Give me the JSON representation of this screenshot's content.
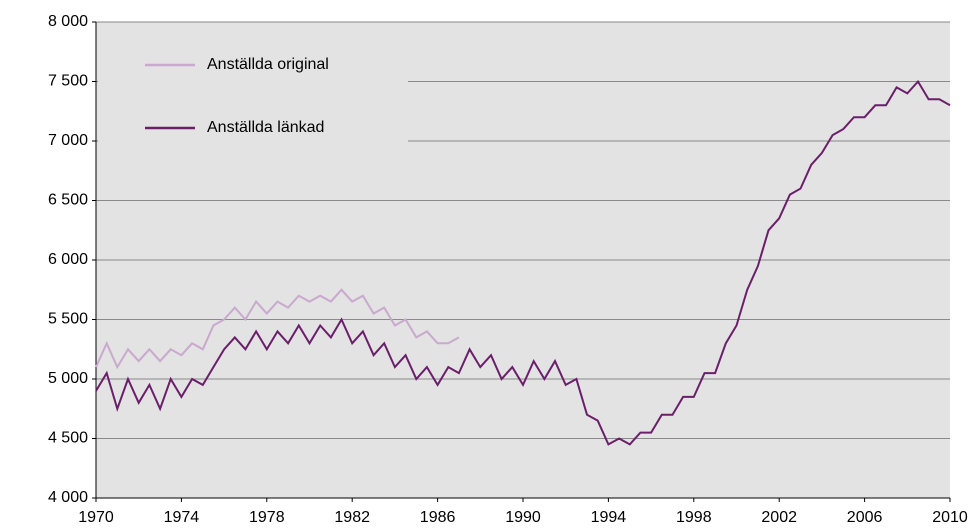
{
  "chart_data": {
    "type": "line",
    "xlim": [
      1970,
      2010
    ],
    "xticks": [
      1970,
      1974,
      1978,
      1982,
      1986,
      1990,
      1994,
      1998,
      2002,
      2006,
      2010
    ],
    "ylim": [
      4000,
      8000
    ],
    "yticks": [
      {
        "value": 4000,
        "label": "4 000"
      },
      {
        "value": 4500,
        "label": "4 500"
      },
      {
        "value": 5000,
        "label": "5 000"
      },
      {
        "value": 5500,
        "label": "5 500"
      },
      {
        "value": 6000,
        "label": "6 000"
      },
      {
        "value": 6500,
        "label": "6 500"
      },
      {
        "value": 7000,
        "label": "7 000"
      },
      {
        "value": 7500,
        "label": "7 500"
      },
      {
        "value": 8000,
        "label": "8 000"
      }
    ],
    "grid": true,
    "legend": "upper left",
    "series": [
      {
        "name": "Anställda original",
        "color": "#c9a9cd",
        "x": [
          1970,
          1970.5,
          1971,
          1971.5,
          1972,
          1972.5,
          1973,
          1973.5,
          1974,
          1974.5,
          1975,
          1975.5,
          1976,
          1976.5,
          1977,
          1977.5,
          1978,
          1978.5,
          1979,
          1979.5,
          1980,
          1980.5,
          1981,
          1981.5,
          1982,
          1982.5,
          1983,
          1983.5,
          1984,
          1984.5,
          1985,
          1985.5,
          1986,
          1986.5,
          1987
        ],
        "values": [
          5100,
          5300,
          5100,
          5250,
          5150,
          5250,
          5150,
          5250,
          5200,
          5300,
          5250,
          5450,
          5500,
          5600,
          5500,
          5650,
          5550,
          5650,
          5600,
          5700,
          5650,
          5700,
          5650,
          5750,
          5650,
          5700,
          5550,
          5600,
          5450,
          5500,
          5350,
          5400,
          5300,
          5300,
          5350
        ]
      },
      {
        "name": "Anställda länkad",
        "color": "#6b1f6b",
        "x": [
          1970,
          1970.5,
          1971,
          1971.5,
          1972,
          1972.5,
          1973,
          1973.5,
          1974,
          1974.5,
          1975,
          1975.5,
          1976,
          1976.5,
          1977,
          1977.5,
          1978,
          1978.5,
          1979,
          1979.5,
          1980,
          1980.5,
          1981,
          1981.5,
          1982,
          1982.5,
          1983,
          1983.5,
          1984,
          1984.5,
          1985,
          1985.5,
          1986,
          1986.5,
          1987,
          1987.5,
          1988,
          1988.5,
          1989,
          1989.5,
          1990,
          1990.5,
          1991,
          1991.5,
          1992,
          1992.5,
          1993,
          1993.5,
          1994,
          1994.5,
          1995,
          1995.5,
          1996,
          1996.5,
          1997,
          1997.5,
          1998,
          1998.5,
          1999,
          1999.5,
          2000,
          2000.5,
          2001,
          2001.5,
          2002,
          2002.5,
          2003,
          2003.5,
          2004,
          2004.5,
          2005,
          2005.5,
          2006,
          2006.5,
          2007,
          2007.5,
          2008,
          2008.5,
          2009,
          2009.5,
          2010
        ],
        "values": [
          4900,
          5050,
          4750,
          5000,
          4800,
          4950,
          4750,
          5000,
          4850,
          5000,
          4950,
          5100,
          5250,
          5350,
          5250,
          5400,
          5250,
          5400,
          5300,
          5450,
          5300,
          5450,
          5350,
          5500,
          5300,
          5400,
          5200,
          5300,
          5100,
          5200,
          5000,
          5100,
          4950,
          5100,
          5050,
          5250,
          5100,
          5200,
          5000,
          5100,
          4950,
          5150,
          5000,
          5150,
          4950,
          5000,
          4700,
          4650,
          4450,
          4500,
          4450,
          4550,
          4550,
          4700,
          4700,
          4850,
          4850,
          5050,
          5050,
          5300,
          5450,
          5750,
          5950,
          6250,
          6350,
          6550,
          6600,
          6800,
          6900,
          7050,
          7100,
          7200,
          7200,
          7300,
          7300,
          7450,
          7400,
          7500,
          7350,
          7350,
          7300
        ]
      }
    ]
  }
}
